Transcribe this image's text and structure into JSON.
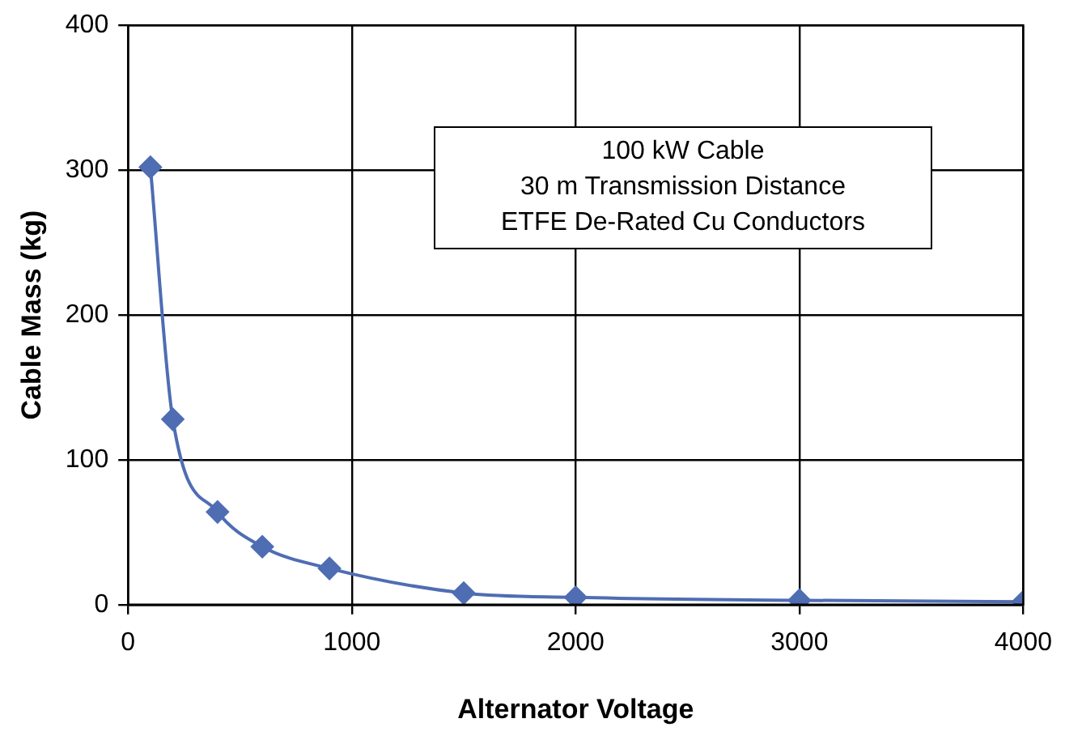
{
  "chart_data": {
    "type": "line",
    "xlabel": "Alternator Voltage",
    "ylabel": "Cable Mass (kg)",
    "annotations": [
      "100 kW Cable",
      "30 m Transmission Distance",
      "ETFE De-Rated Cu Conductors"
    ],
    "x": [
      100,
      200,
      400,
      600,
      900,
      1500,
      2000,
      3000,
      4000
    ],
    "series": [
      {
        "color": "#4f6db3",
        "values": [
          302,
          128,
          64,
          40,
          25,
          8,
          5,
          3,
          2
        ]
      }
    ],
    "xlim": [
      0,
      4000
    ],
    "xticks": [
      0,
      1000,
      2000,
      3000,
      4000
    ],
    "ylim": [
      0,
      400
    ],
    "yticks": [
      0,
      100,
      200,
      300,
      400
    ],
    "grid": true,
    "legend": false,
    "marker": "diamond",
    "line_style": "solid"
  }
}
